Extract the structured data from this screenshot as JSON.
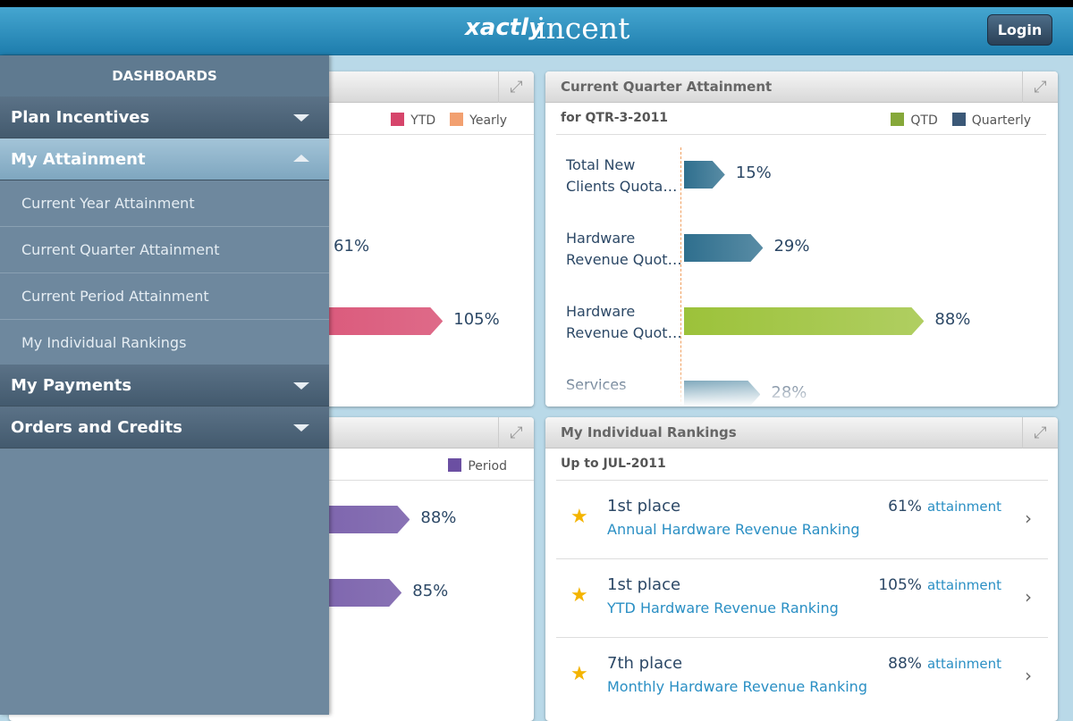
{
  "header": {
    "logo_brand": "xactly",
    "logo_product": "incent",
    "login": "Login"
  },
  "menu": {
    "title": "DASHBOARDS",
    "plan_incentives": "Plan Incentives",
    "my_attainment": "My Attainment",
    "items": [
      "Current Year Attainment",
      "Current Quarter Attainment",
      "Current Period Attainment",
      "My Individual Rankings"
    ],
    "my_payments": "My Payments",
    "orders_and_credits": "Orders and Credits"
  },
  "year_panel": {
    "legend": [
      {
        "name": "YTD",
        "color": "#d6456b"
      },
      {
        "name": "Yearly",
        "color": "#f2a070"
      }
    ],
    "bars": [
      {
        "value": 61,
        "label": "61%",
        "color": null
      },
      {
        "value": 105,
        "label": "105%",
        "color": "#d6456b"
      }
    ]
  },
  "quarter_panel": {
    "title": "Current Quarter Attainment",
    "subtitle": "for QTR-3-2011",
    "legend": [
      {
        "name": "QTD",
        "color": "#86a83a"
      },
      {
        "name": "Quarterly",
        "color": "#3b5877"
      }
    ],
    "bars": [
      {
        "name": "Total New\nClients Quota…",
        "value": 15,
        "label": "15%",
        "color": "#2f6f8e"
      },
      {
        "name": "Hardware\nRevenue Quot…",
        "value": 29,
        "label": "29%",
        "color": "#2f6f8e"
      },
      {
        "name": "Hardware\nRevenue Quot…",
        "value": 88,
        "label": "88%",
        "color": "#9cc23a"
      },
      {
        "name": "Services",
        "value": 28,
        "label": "28%",
        "color": "#4f88a3"
      }
    ]
  },
  "period_panel": {
    "legend": [
      {
        "name": "Period",
        "color": "#6b4fa2"
      }
    ],
    "bars": [
      {
        "value": 88,
        "label": "88%",
        "color": "#6b4fa2"
      },
      {
        "value": 85,
        "label": "85%",
        "color": "#6b4fa2"
      }
    ]
  },
  "rankings_panel": {
    "title": "My Individual Rankings",
    "subtitle": "Up to JUL-2011",
    "rows": [
      {
        "place": "1st place",
        "ranking": "Annual Hardware Revenue Ranking",
        "percent": "61%",
        "suffix": "attainment"
      },
      {
        "place": "1st place",
        "ranking": "YTD Hardware Revenue Ranking",
        "percent": "105%",
        "suffix": "attainment"
      },
      {
        "place": "7th place",
        "ranking": "Monthly Hardware Revenue Ranking",
        "percent": "88%",
        "suffix": "attainment"
      }
    ]
  }
}
